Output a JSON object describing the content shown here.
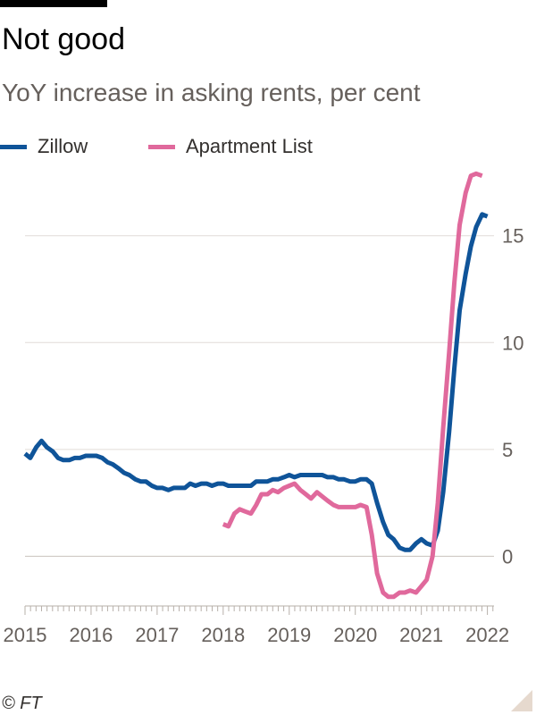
{
  "header": {
    "title": "Not good",
    "subtitle": "YoY increase in asking rents, per cent"
  },
  "footer": {
    "source": "© FT"
  },
  "colors": {
    "zillow": "#0f5499",
    "apartment_list": "#e0699c",
    "grid": "#e0dcd8",
    "axis": "#66605c"
  },
  "chart_data": {
    "type": "line",
    "title": "Not good",
    "subtitle": "YoY increase in asking rents, per cent",
    "xlabel": "",
    "ylabel": "",
    "xlim": [
      2015,
      2022.1
    ],
    "ylim": [
      -2.2,
      18.5
    ],
    "y_ticks": [
      0,
      5,
      10,
      15
    ],
    "x_ticks": [
      2015,
      2016,
      2017,
      2018,
      2019,
      2020,
      2021,
      2022
    ],
    "grid": true,
    "legend": "top-left",
    "series": [
      {
        "name": "Zillow",
        "color": "#0f5499",
        "points": [
          [
            2015.0,
            4.8
          ],
          [
            2015.08,
            4.6
          ],
          [
            2015.17,
            5.1
          ],
          [
            2015.25,
            5.4
          ],
          [
            2015.33,
            5.1
          ],
          [
            2015.42,
            4.9
          ],
          [
            2015.5,
            4.6
          ],
          [
            2015.58,
            4.5
          ],
          [
            2015.67,
            4.5
          ],
          [
            2015.75,
            4.6
          ],
          [
            2015.83,
            4.6
          ],
          [
            2015.92,
            4.7
          ],
          [
            2016.0,
            4.7
          ],
          [
            2016.08,
            4.7
          ],
          [
            2016.17,
            4.6
          ],
          [
            2016.25,
            4.4
          ],
          [
            2016.33,
            4.3
          ],
          [
            2016.42,
            4.1
          ],
          [
            2016.5,
            3.9
          ],
          [
            2016.58,
            3.8
          ],
          [
            2016.67,
            3.6
          ],
          [
            2016.75,
            3.5
          ],
          [
            2016.83,
            3.5
          ],
          [
            2016.92,
            3.3
          ],
          [
            2017.0,
            3.2
          ],
          [
            2017.08,
            3.2
          ],
          [
            2017.17,
            3.1
          ],
          [
            2017.25,
            3.2
          ],
          [
            2017.33,
            3.2
          ],
          [
            2017.42,
            3.2
          ],
          [
            2017.5,
            3.4
          ],
          [
            2017.58,
            3.3
          ],
          [
            2017.67,
            3.4
          ],
          [
            2017.75,
            3.4
          ],
          [
            2017.83,
            3.3
          ],
          [
            2017.92,
            3.4
          ],
          [
            2018.0,
            3.4
          ],
          [
            2018.08,
            3.3
          ],
          [
            2018.17,
            3.3
          ],
          [
            2018.25,
            3.3
          ],
          [
            2018.33,
            3.3
          ],
          [
            2018.42,
            3.3
          ],
          [
            2018.5,
            3.5
          ],
          [
            2018.58,
            3.5
          ],
          [
            2018.67,
            3.5
          ],
          [
            2018.75,
            3.6
          ],
          [
            2018.83,
            3.6
          ],
          [
            2018.92,
            3.7
          ],
          [
            2019.0,
            3.8
          ],
          [
            2019.08,
            3.7
          ],
          [
            2019.17,
            3.8
          ],
          [
            2019.25,
            3.8
          ],
          [
            2019.33,
            3.8
          ],
          [
            2019.42,
            3.8
          ],
          [
            2019.5,
            3.8
          ],
          [
            2019.58,
            3.7
          ],
          [
            2019.67,
            3.7
          ],
          [
            2019.75,
            3.6
          ],
          [
            2019.83,
            3.6
          ],
          [
            2019.92,
            3.5
          ],
          [
            2020.0,
            3.5
          ],
          [
            2020.08,
            3.6
          ],
          [
            2020.17,
            3.6
          ],
          [
            2020.25,
            3.4
          ],
          [
            2020.33,
            2.5
          ],
          [
            2020.42,
            1.6
          ],
          [
            2020.5,
            1.0
          ],
          [
            2020.58,
            0.8
          ],
          [
            2020.67,
            0.4
          ],
          [
            2020.75,
            0.3
          ],
          [
            2020.83,
            0.3
          ],
          [
            2020.92,
            0.6
          ],
          [
            2021.0,
            0.8
          ],
          [
            2021.08,
            0.6
          ],
          [
            2021.17,
            0.5
          ],
          [
            2021.25,
            1.2
          ],
          [
            2021.33,
            3.0
          ],
          [
            2021.42,
            5.8
          ],
          [
            2021.5,
            8.8
          ],
          [
            2021.58,
            11.5
          ],
          [
            2021.67,
            13.2
          ],
          [
            2021.75,
            14.5
          ],
          [
            2021.83,
            15.4
          ],
          [
            2021.92,
            16.0
          ],
          [
            2022.0,
            15.9
          ]
        ]
      },
      {
        "name": "Apartment List",
        "color": "#e0699c",
        "points": [
          [
            2018.0,
            1.5
          ],
          [
            2018.08,
            1.4
          ],
          [
            2018.17,
            2.0
          ],
          [
            2018.25,
            2.2
          ],
          [
            2018.33,
            2.1
          ],
          [
            2018.42,
            2.0
          ],
          [
            2018.5,
            2.4
          ],
          [
            2018.58,
            2.9
          ],
          [
            2018.67,
            2.9
          ],
          [
            2018.75,
            3.1
          ],
          [
            2018.83,
            3.0
          ],
          [
            2018.92,
            3.2
          ],
          [
            2019.0,
            3.3
          ],
          [
            2019.08,
            3.4
          ],
          [
            2019.17,
            3.1
          ],
          [
            2019.25,
            2.9
          ],
          [
            2019.33,
            2.7
          ],
          [
            2019.42,
            3.0
          ],
          [
            2019.5,
            2.8
          ],
          [
            2019.58,
            2.6
          ],
          [
            2019.67,
            2.4
          ],
          [
            2019.75,
            2.3
          ],
          [
            2019.83,
            2.3
          ],
          [
            2019.92,
            2.3
          ],
          [
            2020.0,
            2.3
          ],
          [
            2020.08,
            2.4
          ],
          [
            2020.17,
            2.3
          ],
          [
            2020.25,
            1.0
          ],
          [
            2020.33,
            -0.8
          ],
          [
            2020.42,
            -1.7
          ],
          [
            2020.5,
            -1.9
          ],
          [
            2020.58,
            -1.9
          ],
          [
            2020.67,
            -1.7
          ],
          [
            2020.75,
            -1.7
          ],
          [
            2020.83,
            -1.6
          ],
          [
            2020.92,
            -1.7
          ],
          [
            2021.0,
            -1.4
          ],
          [
            2021.08,
            -1.1
          ],
          [
            2021.17,
            0.0
          ],
          [
            2021.25,
            2.5
          ],
          [
            2021.33,
            6.0
          ],
          [
            2021.42,
            9.5
          ],
          [
            2021.5,
            12.8
          ],
          [
            2021.58,
            15.5
          ],
          [
            2021.67,
            17.0
          ],
          [
            2021.75,
            17.8
          ],
          [
            2021.83,
            17.9
          ],
          [
            2021.92,
            17.8
          ]
        ]
      }
    ]
  }
}
